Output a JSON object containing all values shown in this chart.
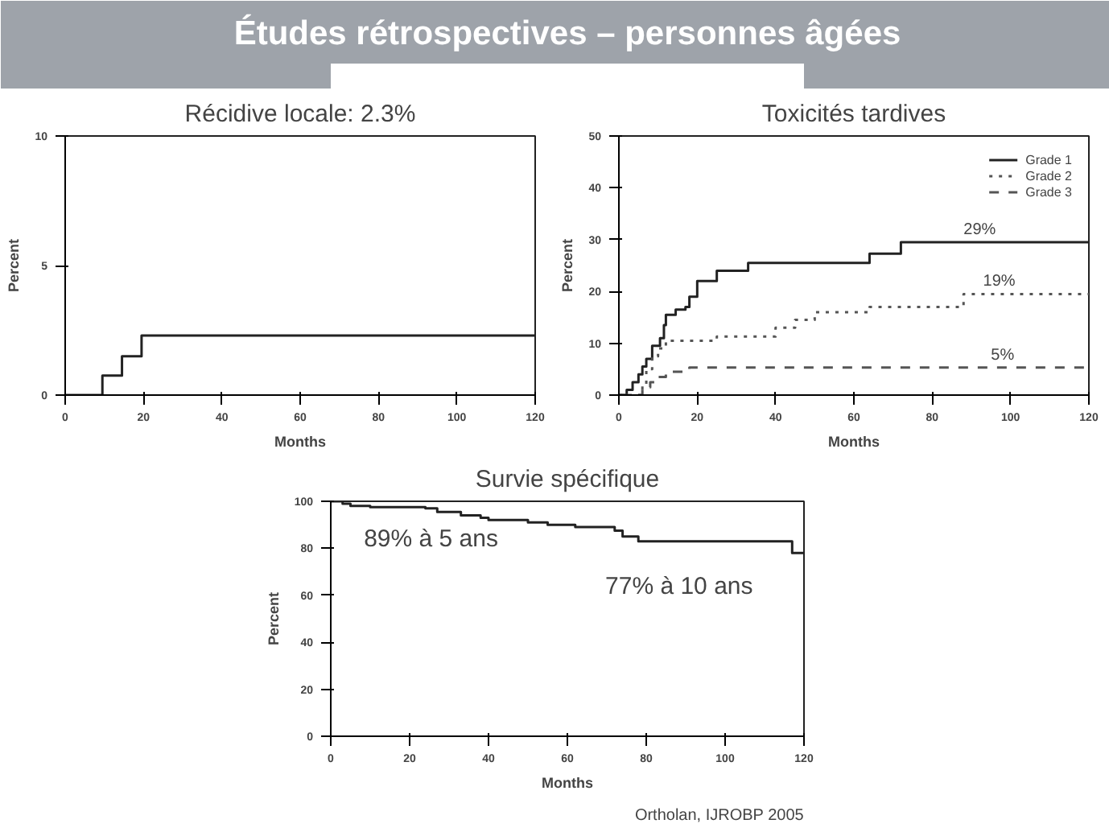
{
  "chart_data": [
    {
      "type": "other",
      "title": "Études rétrospectives – personnes âgées"
    },
    {
      "type": "step",
      "title": "Récidive locale: 2.3%",
      "xlabel": "Months",
      "ylabel": "Percent",
      "xlim": [
        0,
        120
      ],
      "ylim": [
        0,
        10
      ],
      "xticks": [
        0,
        20,
        40,
        60,
        80,
        100,
        120
      ],
      "yticks": [
        0,
        5,
        10
      ],
      "series": [
        {
          "color": "#222222",
          "line_style": "solid",
          "x": [
            0,
            9.5,
            14.5,
            19.5,
            120
          ],
          "values": [
            0,
            0.75,
            1.5,
            2.3,
            2.3
          ]
        }
      ]
    },
    {
      "type": "step",
      "title": "Toxicités tardives",
      "xlabel": "Months",
      "ylabel": "Percent",
      "xlim": [
        0,
        120
      ],
      "ylim": [
        0,
        50
      ],
      "xticks": [
        0,
        20,
        40,
        60,
        80,
        100,
        120
      ],
      "yticks": [
        0,
        10,
        20,
        30,
        40,
        50
      ],
      "legend": "top right",
      "series": [
        {
          "name": "Grade 1",
          "color": "#222222",
          "line_style": "solid",
          "x": [
            0,
            2,
            3.5,
            5,
            6,
            7,
            8.5,
            10.5,
            11.5,
            12,
            14.5,
            17,
            18,
            20,
            25,
            33,
            64,
            72,
            120
          ],
          "values": [
            0,
            1,
            2.5,
            4,
            5.5,
            7,
            9.5,
            11,
            13.5,
            15.5,
            16.5,
            17,
            19,
            22,
            24,
            25.5,
            27.3,
            29.5,
            29.5
          ]
        },
        {
          "name": "Grade 2",
          "color": "#555555",
          "line_style": "dotted",
          "x": [
            0,
            6,
            7,
            8.5,
            10,
            12,
            25,
            40,
            45,
            50,
            64,
            88,
            120
          ],
          "values": [
            0,
            2,
            5,
            7.5,
            9,
            10.5,
            11.3,
            13,
            14.5,
            16,
            17,
            19.5,
            19.5
          ]
        },
        {
          "name": "Grade 3",
          "color": "#555555",
          "line_style": "dashed",
          "x": [
            0,
            6,
            8,
            10,
            12,
            18,
            120
          ],
          "values": [
            0,
            1.5,
            2.5,
            3.5,
            4.5,
            5.3,
            5.3
          ]
        }
      ],
      "annotations": [
        {
          "text": "29%",
          "x": 88,
          "y": 29.5
        },
        {
          "text": "19%",
          "x": 93,
          "y": 19.5
        },
        {
          "text": "5%",
          "x": 95,
          "y": 5.3
        }
      ]
    },
    {
      "type": "step",
      "title": "Survie spécifique",
      "xlabel": "Months",
      "ylabel": "Percent",
      "xlim": [
        0,
        120
      ],
      "ylim": [
        0,
        100
      ],
      "xticks": [
        0,
        20,
        40,
        60,
        80,
        100,
        120
      ],
      "yticks": [
        0,
        20,
        40,
        60,
        80,
        100
      ],
      "series": [
        {
          "color": "#222222",
          "line_style": "solid",
          "x": [
            0,
            3,
            5,
            10,
            24,
            27,
            33,
            38,
            40,
            50,
            55,
            62,
            72,
            74,
            78,
            117,
            120
          ],
          "values": [
            100,
            99,
            98,
            97.5,
            97,
            95.5,
            94,
            93,
            92,
            91,
            90,
            89,
            87.5,
            85,
            83,
            78,
            78
          ]
        }
      ],
      "annotations": [
        "89% à 5 ans",
        "77% à 10 ans",
        "Ortholan, IJROBP 2005"
      ]
    }
  ]
}
